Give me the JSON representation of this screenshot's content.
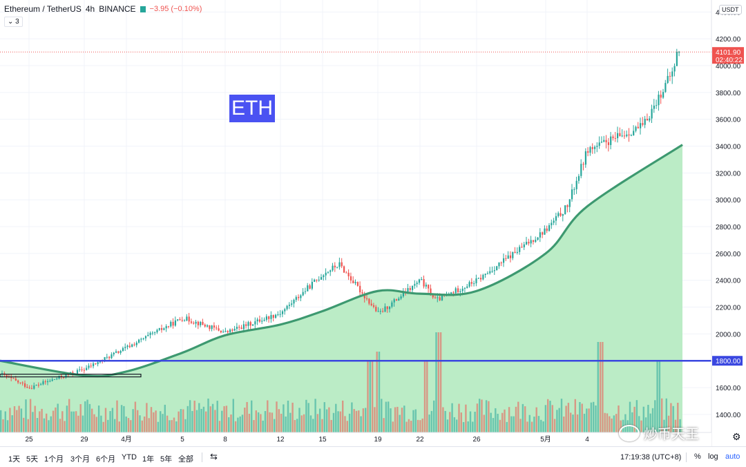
{
  "header": {
    "symbol": "Ethereum / TetherUS",
    "interval": "4h",
    "exchange": "BINANCE",
    "change": "−3.95 (−0.10%)",
    "indicator_count": "3",
    "currency": "USDT"
  },
  "annotation_label": "ETH",
  "price_badges": {
    "last_price": "4101.90",
    "countdown": "02:40:22",
    "level_line": "1800.00"
  },
  "colors": {
    "up": "#26a69a",
    "down": "#ef5350",
    "ma_line": "#3d9970",
    "ma_fill": "#b7ebc3",
    "level_line": "#3a47e0",
    "label_bg": "#4a52f2"
  },
  "bottom_bar": {
    "ranges": [
      "1天",
      "5天",
      "1个月",
      "3个月",
      "6个月",
      "YTD",
      "1年",
      "5年",
      "全部"
    ],
    "clock": "17:19:38 (UTC+8)",
    "percent": "%",
    "log": "log",
    "auto": "auto"
  },
  "watermark": "炒币天王",
  "chart_data": {
    "type": "candlestick",
    "title": "Ethereum / TetherUS · 4h · BINANCE",
    "y_axis": {
      "ticks": [
        1400,
        1600,
        1800,
        2000,
        2200,
        2400,
        2600,
        2800,
        3000,
        3200,
        3400,
        3600,
        3800,
        4000,
        4200,
        4400
      ],
      "ylim": [
        1250,
        4470
      ],
      "currency": "USDT"
    },
    "x_axis": {
      "ticks": [
        "25",
        "29",
        "4月",
        "5",
        "8",
        "12",
        "15",
        "19",
        "22",
        "26",
        "5月",
        "4"
      ]
    },
    "horizontal_level": 1800,
    "last_price": 4101.9,
    "range_box": {
      "from_price_low": 1680,
      "from_price_high": 1700
    },
    "grid": true,
    "ohlc_anchor_closes": [
      {
        "x": "start",
        "close": 1700
      },
      {
        "x": "25",
        "close": 1600
      },
      {
        "x": "29",
        "close": 1740
      },
      {
        "x": "4月",
        "close": 1900
      },
      {
        "x": "5",
        "close": 2120
      },
      {
        "x": "8",
        "close": 2010
      },
      {
        "x": "12",
        "close": 2160
      },
      {
        "x": "15",
        "close": 2450
      },
      {
        "x": "16",
        "close": 2520
      },
      {
        "x": "19",
        "close": 2150
      },
      {
        "x": "22",
        "close": 2400
      },
      {
        "x": "23",
        "close": 2250
      },
      {
        "x": "26",
        "close": 2400
      },
      {
        "x": "5月",
        "close": 2780
      },
      {
        "x": "2",
        "close": 2950
      },
      {
        "x": "3",
        "close": 3380
      },
      {
        "x": "4",
        "close": 3380
      },
      {
        "x": "6",
        "close": 3550
      },
      {
        "x": "end",
        "close": 4101.9
      }
    ],
    "moving_average": [
      {
        "x": "start",
        "value": 1800
      },
      {
        "x": "29",
        "value": 1690
      },
      {
        "x": "4月",
        "value": 1720
      },
      {
        "x": "5",
        "value": 1860
      },
      {
        "x": "8",
        "value": 1990
      },
      {
        "x": "12",
        "value": 2070
      },
      {
        "x": "15",
        "value": 2170
      },
      {
        "x": "19",
        "value": 2320
      },
      {
        "x": "22",
        "value": 2300
      },
      {
        "x": "26",
        "value": 2320
      },
      {
        "x": "5月",
        "value": 2600
      },
      {
        "x": "4",
        "value": 2950
      },
      {
        "x": "end",
        "value": 3410
      }
    ],
    "volume_note": "volume bars shown along the bottom, colored by candle direction"
  }
}
